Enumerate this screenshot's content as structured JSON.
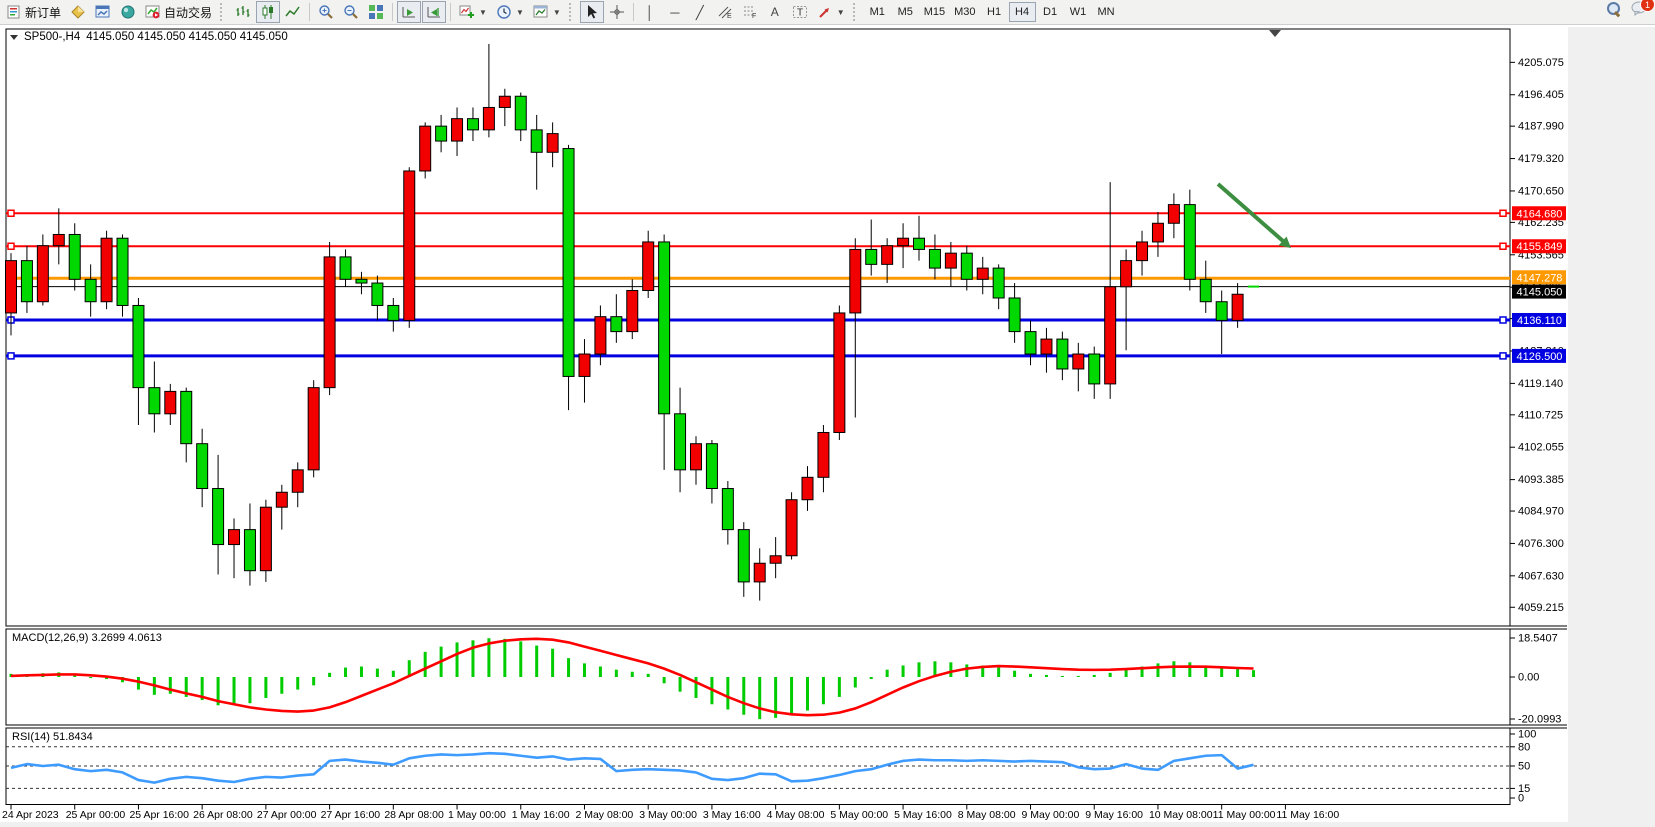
{
  "toolbar": {
    "new_order_label": "新订单",
    "auto_trading_label": "自动交易",
    "timeframes": [
      "M1",
      "M5",
      "M15",
      "M30",
      "H1",
      "H4",
      "D1",
      "W1",
      "MN"
    ],
    "active_timeframe": "H4",
    "notification_count": "1"
  },
  "window": {
    "title_symbol": "SP500-,H4",
    "title_ohlc": "4145.050 4145.050 4145.050 4145.050"
  },
  "price_axis": {
    "tick_labels": [
      "4205.075",
      "4196.405",
      "4187.990",
      "4179.320",
      "4170.650",
      "4162.235",
      "4153.565",
      "4144.895",
      "4136.480",
      "4127.810",
      "4119.140",
      "4110.725",
      "4102.055",
      "4093.385",
      "4084.970",
      "4076.300",
      "4067.630",
      "4059.215"
    ]
  },
  "time_axis": {
    "labels": [
      "24 Apr 2023",
      "25 Apr 00:00",
      "25 Apr 16:00",
      "26 Apr 08:00",
      "27 Apr 00:00",
      "27 Apr 16:00",
      "28 Apr 08:00",
      "1 May 00:00",
      "1 May 16:00",
      "2 May 08:00",
      "3 May 00:00",
      "3 May 16:00",
      "4 May 08:00",
      "5 May 00:00",
      "5 May 16:00",
      "8 May 08:00",
      "9 May 00:00",
      "9 May 16:00",
      "10 May 08:00",
      "11 May 00:00",
      "11 May 16:00"
    ]
  },
  "hlines": [
    {
      "label": "4164.680",
      "value": 4164.68,
      "color": "#ff0000",
      "width": 2,
      "markers": true
    },
    {
      "label": "4155.849",
      "value": 4155.849,
      "color": "#ff0000",
      "width": 2,
      "markers": true
    },
    {
      "label": "4147.278",
      "value": 4147.278,
      "color": "#ff9900",
      "width": 3,
      "markers": false
    },
    {
      "label": "4136.110",
      "value": 4136.11,
      "color": "#0000e0",
      "width": 3,
      "markers": true
    },
    {
      "label": "4126.500",
      "value": 4126.5,
      "color": "#0000e0",
      "width": 3,
      "markers": true
    }
  ],
  "current_price": {
    "label": "4145.050",
    "value": 4145.05
  },
  "chart_data": {
    "type": "candlestick",
    "symbol": "SP500-",
    "timeframe": "H4",
    "title": "SP500-,H4 4145.050 4145.050 4145.050 4145.050",
    "ylim": [
      4054.2,
      4214.0
    ],
    "grid": false,
    "candles": [
      [
        4138,
        4154,
        4132,
        4152
      ],
      [
        4152,
        4156,
        4138,
        4141
      ],
      [
        4141,
        4159,
        4140,
        4156
      ],
      [
        4156,
        4166,
        4151,
        4159
      ],
      [
        4159,
        4162,
        4144,
        4147
      ],
      [
        4147,
        4151,
        4137,
        4141
      ],
      [
        4141,
        4160,
        4139,
        4158
      ],
      [
        4158,
        4159,
        4137,
        4140
      ],
      [
        4140,
        4142,
        4108,
        4118
      ],
      [
        4118,
        4125,
        4106,
        4111
      ],
      [
        4111,
        4119,
        4108,
        4117
      ],
      [
        4117,
        4118,
        4098,
        4103
      ],
      [
        4103,
        4107,
        4086,
        4091
      ],
      [
        4091,
        4100,
        4068,
        4076
      ],
      [
        4076,
        4083,
        4067,
        4080
      ],
      [
        4080,
        4087,
        4065,
        4069
      ],
      [
        4069,
        4088,
        4066,
        4086
      ],
      [
        4086,
        4092,
        4080,
        4090
      ],
      [
        4090,
        4098,
        4086,
        4096
      ],
      [
        4096,
        4120,
        4094,
        4118
      ],
      [
        4118,
        4157,
        4116,
        4153
      ],
      [
        4153,
        4155,
        4145,
        4147
      ],
      [
        4147,
        4149,
        4143,
        4146
      ],
      [
        4146,
        4148,
        4136,
        4140
      ],
      [
        4140,
        4142,
        4133,
        4136
      ],
      [
        4136,
        4177,
        4134,
        4176
      ],
      [
        4176,
        4189,
        4174,
        4188
      ],
      [
        4188,
        4191,
        4181,
        4184
      ],
      [
        4184,
        4193,
        4180,
        4190
      ],
      [
        4190,
        4193,
        4184,
        4187
      ],
      [
        4187,
        4210,
        4185,
        4193
      ],
      [
        4193,
        4198,
        4188,
        4196
      ],
      [
        4196,
        4197,
        4184,
        4187
      ],
      [
        4187,
        4191,
        4171,
        4181
      ],
      [
        4181,
        4189,
        4177,
        4186
      ],
      [
        4182,
        4183,
        4112,
        4121
      ],
      [
        4121,
        4131,
        4114,
        4127
      ],
      [
        4127,
        4140,
        4124,
        4137
      ],
      [
        4137,
        4143,
        4130,
        4133
      ],
      [
        4133,
        4147,
        4131,
        4144
      ],
      [
        4144,
        4160,
        4142,
        4157
      ],
      [
        4157,
        4159,
        4096,
        4111
      ],
      [
        4111,
        4118,
        4090,
        4096
      ],
      [
        4096,
        4105,
        4092,
        4103
      ],
      [
        4103,
        4104,
        4087,
        4091
      ],
      [
        4091,
        4093,
        4076,
        4080
      ],
      [
        4080,
        4082,
        4062,
        4066
      ],
      [
        4066,
        4075,
        4061,
        4071
      ],
      [
        4071,
        4078,
        4067,
        4073
      ],
      [
        4073,
        4090,
        4072,
        4088
      ],
      [
        4088,
        4097,
        4085,
        4094
      ],
      [
        4094,
        4108,
        4090,
        4106
      ],
      [
        4106,
        4140,
        4104,
        4138
      ],
      [
        4138,
        4158,
        4110,
        4155
      ],
      [
        4155,
        4163,
        4148,
        4151
      ],
      [
        4151,
        4158,
        4146,
        4156
      ],
      [
        4156,
        4162,
        4150,
        4158
      ],
      [
        4158,
        4164,
        4152,
        4155
      ],
      [
        4155,
        4159,
        4147,
        4150
      ],
      [
        4150,
        4157,
        4145,
        4154
      ],
      [
        4154,
        4156,
        4144,
        4147
      ],
      [
        4147,
        4153,
        4143,
        4150
      ],
      [
        4150,
        4151,
        4139,
        4142
      ],
      [
        4142,
        4146,
        4130,
        4133
      ],
      [
        4133,
        4136,
        4124,
        4127
      ],
      [
        4127,
        4134,
        4122,
        4131
      ],
      [
        4131,
        4133,
        4120,
        4123
      ],
      [
        4123,
        4130,
        4117,
        4127
      ],
      [
        4127,
        4129,
        4115,
        4119
      ],
      [
        4119,
        4173,
        4115,
        4145
      ],
      [
        4145,
        4155,
        4128,
        4152
      ],
      [
        4152,
        4160,
        4148,
        4157
      ],
      [
        4157,
        4165,
        4153,
        4162
      ],
      [
        4162,
        4170,
        4158,
        4167
      ],
      [
        4167,
        4171,
        4144,
        4147
      ],
      [
        4147,
        4152,
        4138,
        4141
      ],
      [
        4141,
        4144,
        4127,
        4136
      ],
      [
        4136,
        4146,
        4134,
        4143
      ],
      [
        4145.05,
        4145.05,
        4145.05,
        4145.05
      ]
    ],
    "macd": {
      "display": "MACD(12,26,9) 3.2699 4.0613",
      "name": "MACD(12,26,9)",
      "macd_value": "3.2699",
      "signal_value": "4.0613",
      "scale_labels": [
        "18.5407",
        "0.00",
        "-20.0993"
      ],
      "hist": [
        1.5,
        1.0,
        1.8,
        2.2,
        1.0,
        -0.5,
        -1.0,
        -2.5,
        -6.0,
        -8.5,
        -8.0,
        -9.5,
        -11.0,
        -13.5,
        -13.0,
        -12.5,
        -10.0,
        -8.0,
        -6.0,
        -4.0,
        2.0,
        4.5,
        5.0,
        4.0,
        3.0,
        8.0,
        12.0,
        14.5,
        16.5,
        17.5,
        18.5,
        18.2,
        17.0,
        15.0,
        13.5,
        9.0,
        6.5,
        5.0,
        3.5,
        2.5,
        1.5,
        -3.0,
        -7.0,
        -10.0,
        -13.0,
        -15.5,
        -18.0,
        -20.1,
        -19.5,
        -18.0,
        -16.0,
        -13.0,
        -9.5,
        -5.0,
        -1.0,
        3.5,
        5.5,
        7.0,
        7.5,
        7.0,
        6.0,
        5.5,
        4.5,
        3.0,
        1.5,
        1.0,
        0.5,
        0.5,
        1.0,
        2.0,
        3.5,
        5.0,
        6.5,
        7.5,
        7.0,
        5.5,
        4.5,
        3.8,
        3.27
      ],
      "signal": [
        0.5,
        0.8,
        1.0,
        1.2,
        1.2,
        0.8,
        0.2,
        -0.8,
        -2.2,
        -4.0,
        -6.0,
        -7.8,
        -9.5,
        -11.5,
        -13.0,
        -14.5,
        -15.5,
        -16.2,
        -16.5,
        -16.0,
        -14.5,
        -12.0,
        -9.0,
        -6.0,
        -3.0,
        0.5,
        4.0,
        7.5,
        11.0,
        14.0,
        16.0,
        17.3,
        18.0,
        18.2,
        17.8,
        16.5,
        14.5,
        12.5,
        10.5,
        8.5,
        6.5,
        4.0,
        1.0,
        -2.5,
        -6.0,
        -9.5,
        -12.5,
        -15.0,
        -16.8,
        -17.8,
        -18.2,
        -18.0,
        -17.0,
        -15.0,
        -12.0,
        -8.5,
        -5.0,
        -2.0,
        0.5,
        2.5,
        4.0,
        4.8,
        5.2,
        5.0,
        4.6,
        4.2,
        3.8,
        3.5,
        3.4,
        3.5,
        3.8,
        4.2,
        4.6,
        4.9,
        5.0,
        4.9,
        4.6,
        4.3,
        4.06
      ]
    },
    "rsi": {
      "display": "RSI(14) 51.8434",
      "name": "RSI(14)",
      "value": "51.8434",
      "scale_labels": [
        "100",
        "80",
        "50",
        "15",
        "0"
      ],
      "levels": [
        80,
        50,
        15
      ],
      "values": [
        47,
        53,
        50,
        52,
        45,
        42,
        44,
        40,
        28,
        24,
        30,
        33,
        31,
        27,
        25,
        30,
        33,
        32,
        35,
        37,
        58,
        60,
        57,
        55,
        52,
        62,
        66,
        68,
        67,
        68,
        70,
        69,
        66,
        63,
        65,
        60,
        62,
        61,
        42,
        44,
        45,
        44,
        43,
        40,
        30,
        28,
        31,
        38,
        37,
        26,
        27,
        31,
        36,
        42,
        45,
        52,
        58,
        60,
        59,
        59,
        58,
        59,
        58,
        57,
        58,
        57,
        56,
        48,
        45,
        46,
        53,
        46,
        44,
        58,
        62,
        66,
        67,
        46,
        51.84
      ]
    }
  },
  "colors": {
    "bull": "#f20000",
    "bear": "#00d800",
    "wick": "#000000",
    "macd_bar": "#00cc00",
    "macd_signal": "#ff0000",
    "rsi_line": "#3e9bff",
    "arrow": "#3e8e41",
    "current_price_badge": "#000000"
  }
}
